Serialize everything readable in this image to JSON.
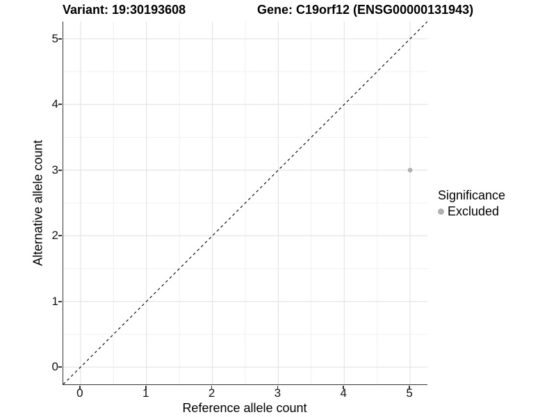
{
  "titles": {
    "variant": "Variant: 19:30193608",
    "gene": "Gene: C19orf12 (ENSG00000131943)"
  },
  "x_axis": {
    "label": "Reference allele count"
  },
  "y_axis": {
    "label": "Alternative allele count"
  },
  "legend": {
    "title": "Significance",
    "items": [
      {
        "label": "Excluded",
        "color": "#b1b1b1"
      }
    ]
  },
  "colors": {
    "point": "#b1b1b1",
    "grid_major": "#e4e4e4",
    "grid_minor": "#f0f0f0",
    "axis_line": "#333333",
    "identity_line": "#111111"
  },
  "chart_data": {
    "type": "scatter",
    "title": "Variant: 19:30193608   Gene: C19orf12 (ENSG00000131943)",
    "xlabel": "Reference allele count",
    "ylabel": "Alternative allele count",
    "xlim": [
      -0.2625,
      5.2625
    ],
    "ylim": [
      -0.2625,
      5.2625
    ],
    "x_ticks": [
      0,
      1,
      2,
      3,
      4,
      5
    ],
    "y_ticks": [
      0,
      1,
      2,
      3,
      4,
      5
    ],
    "minor_ticks": [
      0.5,
      1.5,
      2.5,
      3.5,
      4.5
    ],
    "grid": "major+minor",
    "legend_position": "right",
    "series": [
      {
        "name": "Excluded",
        "color": "#b1b1b1",
        "points": [
          {
            "x": 5,
            "y": 3
          }
        ]
      }
    ],
    "reference_line": {
      "equation": "y = x",
      "style": "dashed",
      "from": [
        -0.2625,
        -0.2625
      ],
      "to": [
        5.2625,
        5.2625
      ]
    }
  }
}
